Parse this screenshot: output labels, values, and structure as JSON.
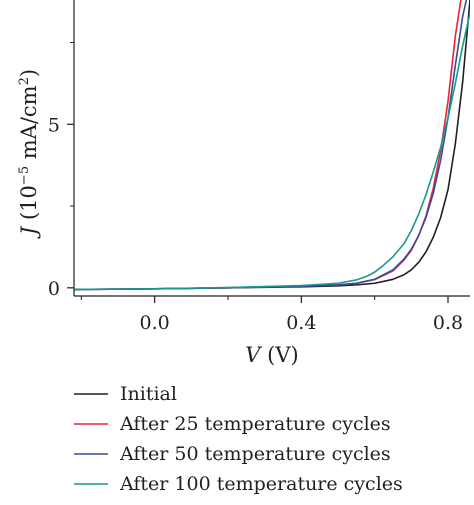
{
  "chart_data": {
    "type": "line",
    "xlabel_italic": "V",
    "xlabel_unit": " (V)",
    "ylabel_italic": "J",
    "ylabel_pre": " (10",
    "ylabel_exp": "−5",
    "ylabel_mid": " mA/cm",
    "ylabel_sq": "2",
    "ylabel_post": ")",
    "xlim": [
      -0.22,
      0.86
    ],
    "ylim": [
      -0.25,
      8.8
    ],
    "x_ticks": [
      {
        "value": 0.0,
        "label": "0.0"
      },
      {
        "value": 0.4,
        "label": "0.4"
      },
      {
        "value": 0.8,
        "label": "0.8"
      }
    ],
    "x_minor_ticks": [
      -0.2,
      0.2,
      0.6
    ],
    "y_ticks": [
      {
        "value": 0,
        "label": "0"
      },
      {
        "value": 5,
        "label": "5"
      }
    ],
    "y_minor_ticks": [
      2.5,
      7.5
    ],
    "legend_position": "bottom",
    "series": [
      {
        "name": "Initial",
        "color": "#231f20",
        "x": [
          -0.22,
          0.0,
          0.2,
          0.4,
          0.5,
          0.55,
          0.6,
          0.65,
          0.68,
          0.7,
          0.72,
          0.74,
          0.76,
          0.78,
          0.8,
          0.82,
          0.84,
          0.86
        ],
        "y": [
          -0.05,
          -0.03,
          0.0,
          0.03,
          0.06,
          0.09,
          0.14,
          0.26,
          0.4,
          0.55,
          0.78,
          1.1,
          1.55,
          2.15,
          3.0,
          4.4,
          6.3,
          8.8
        ]
      },
      {
        "name": "After 25 temperature cycles",
        "color": "#e8262d",
        "x": [
          -0.22,
          0.0,
          0.2,
          0.4,
          0.5,
          0.55,
          0.6,
          0.65,
          0.68,
          0.7,
          0.72,
          0.74,
          0.76,
          0.78,
          0.8,
          0.82,
          0.835
        ],
        "y": [
          -0.05,
          -0.03,
          0.0,
          0.05,
          0.09,
          0.14,
          0.25,
          0.52,
          0.85,
          1.15,
          1.6,
          2.2,
          3.05,
          4.2,
          5.7,
          7.7,
          8.8
        ]
      },
      {
        "name": "After 50 temperature cycles",
        "color": "#3a4aa0",
        "x": [
          -0.22,
          0.0,
          0.2,
          0.4,
          0.5,
          0.55,
          0.6,
          0.65,
          0.68,
          0.7,
          0.72,
          0.74,
          0.76,
          0.78,
          0.8,
          0.82,
          0.84,
          0.85
        ],
        "y": [
          -0.05,
          -0.03,
          0.0,
          0.05,
          0.09,
          0.14,
          0.26,
          0.55,
          0.88,
          1.18,
          1.6,
          2.15,
          2.9,
          3.9,
          5.2,
          6.8,
          8.3,
          8.8
        ]
      },
      {
        "name": "After 100 temperature cycles",
        "color": "#169a8f",
        "x": [
          -0.22,
          0.0,
          0.2,
          0.4,
          0.5,
          0.55,
          0.58,
          0.6,
          0.62,
          0.65,
          0.68,
          0.7,
          0.72,
          0.74,
          0.76,
          0.78,
          0.8,
          0.82,
          0.84,
          0.86
        ],
        "y": [
          -0.05,
          -0.03,
          0.01,
          0.07,
          0.14,
          0.24,
          0.36,
          0.48,
          0.65,
          0.95,
          1.35,
          1.75,
          2.25,
          2.85,
          3.55,
          4.3,
          5.2,
          6.25,
          7.4,
          8.4
        ]
      }
    ]
  }
}
